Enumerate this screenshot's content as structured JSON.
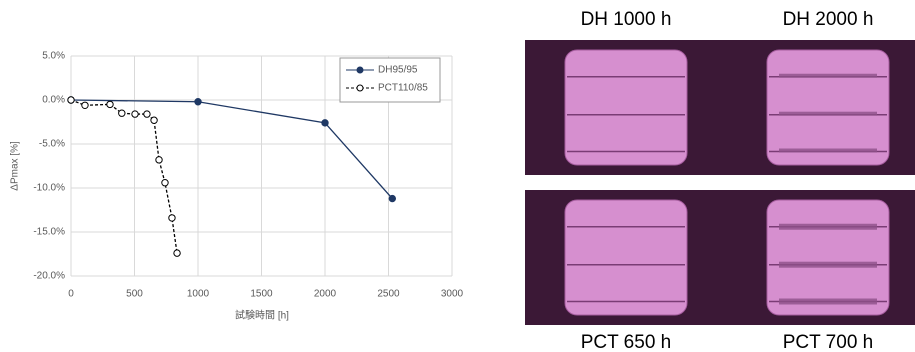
{
  "chart_data": {
    "type": "line",
    "xlabel": "試験時間 [h]",
    "ylabel": "ΔPmax [%]",
    "xlim": [
      0,
      3000
    ],
    "xticks": [
      0,
      500,
      1000,
      1500,
      2000,
      2500,
      3000
    ],
    "ylim": [
      -20,
      5
    ],
    "yticks": [
      {
        "value": -20,
        "label": "-20.0%"
      },
      {
        "value": -15,
        "label": "-15.0%"
      },
      {
        "value": -10,
        "label": "-10.0%"
      },
      {
        "value": -5,
        "label": "-5.0%"
      },
      {
        "value": 0,
        "label": "0.0%"
      },
      {
        "value": 5,
        "label": "5.0%"
      }
    ],
    "grid": true,
    "legend": "upper right",
    "series": [
      {
        "name": "DH95/95",
        "color": "#1f3864",
        "linestyle": "solid",
        "marker": "filled",
        "x": [
          0,
          1000,
          2000,
          2530
        ],
        "values": [
          0,
          -0.2,
          -2.6,
          -11.2
        ]
      },
      {
        "name": "PCT110/85",
        "color": "#000000",
        "linestyle": "dashed",
        "marker": "open",
        "x": [
          0,
          110,
          307,
          400,
          504,
          598,
          654,
          693,
          740,
          795,
          835
        ],
        "values": [
          0,
          -0.6,
          -0.5,
          -1.5,
          -1.6,
          -1.6,
          -2.3,
          -6.8,
          -9.4,
          -13.4,
          -17.4
        ]
      }
    ]
  },
  "panels": [
    {
      "label": "DH 1000 h"
    },
    {
      "label": "DH 2000 h"
    },
    {
      "label": "PCT 650 h"
    },
    {
      "label": "PCT 700 h"
    }
  ]
}
